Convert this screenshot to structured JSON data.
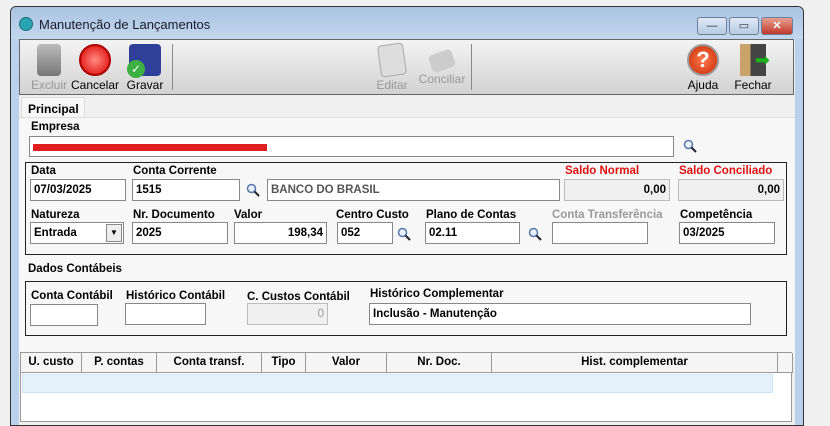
{
  "window": {
    "title": "Manutenção de Lançamentos",
    "minimize": "—",
    "maximize": "▭",
    "close": "✕"
  },
  "toolbar": [
    {
      "id": "excluir",
      "label": "Excluir",
      "icon": "trash-icon",
      "enabled": false
    },
    {
      "id": "cancelar",
      "label": "Cancelar",
      "icon": "cancel-icon",
      "enabled": true
    },
    {
      "id": "gravar",
      "label": "Gravar",
      "icon": "save-icon",
      "enabled": true
    },
    {
      "id": "editar",
      "label": "Editar",
      "icon": "edit-icon",
      "enabled": false
    },
    {
      "id": "conciliar",
      "label": "Conciliar",
      "icon": "reconcile-icon",
      "enabled": false
    },
    {
      "id": "ajuda",
      "label": "Ajuda",
      "icon": "help-icon",
      "enabled": true
    },
    {
      "id": "fechar",
      "label": "Fechar",
      "icon": "exit-door-icon",
      "enabled": true
    }
  ],
  "tabs": [
    {
      "label": "Principal",
      "active": true
    }
  ],
  "form": {
    "empresa_label": "Empresa",
    "empresa_value": "(redacted)",
    "data_label": "Data",
    "data_value": "07/03/2025",
    "conta_corrente_label": "Conta Corrente",
    "conta_corrente_value": "1515",
    "banco_value": "BANCO DO BRASIL",
    "saldo_normal_label": "Saldo Normal",
    "saldo_normal_value": "0,00",
    "saldo_conciliado_label": "Saldo Conciliado",
    "saldo_conciliado_value": "0,00",
    "natureza_label": "Natureza",
    "natureza_value": "Entrada",
    "nr_documento_label": "Nr. Documento",
    "nr_documento_value": "2025",
    "valor_label": "Valor",
    "valor_value": "198,34",
    "centro_custo_label": "Centro Custo",
    "centro_custo_value": "052",
    "plano_contas_label": "Plano de Contas",
    "plano_contas_value": "02.11",
    "conta_transferencia_label": "Conta Transferência",
    "conta_transferencia_value": "",
    "competencia_label": "Competência",
    "competencia_value": "03/2025",
    "dados_contabeis_label": "Dados Contábeis",
    "conta_contabil_label": "Conta Contábil",
    "conta_contabil_value": "",
    "historico_contabil_label": "Histórico Contábil",
    "historico_contabil_value": "",
    "c_custos_contabil_label": "C. Custos Contábil",
    "c_custos_contabil_value": "0",
    "historico_complementar_label": "Histórico Complementar",
    "historico_complementar_value": "Inclusão - Manutenção"
  },
  "grid": {
    "columns": [
      "U. custo",
      "P. contas",
      "Conta transf.",
      "Tipo",
      "Valor",
      "Nr. Doc.",
      "Hist. complementar"
    ],
    "rows": []
  },
  "colors": {
    "label_red": "#e01010",
    "redaction": "#e02020",
    "selected_row": "#e5f1fb"
  }
}
